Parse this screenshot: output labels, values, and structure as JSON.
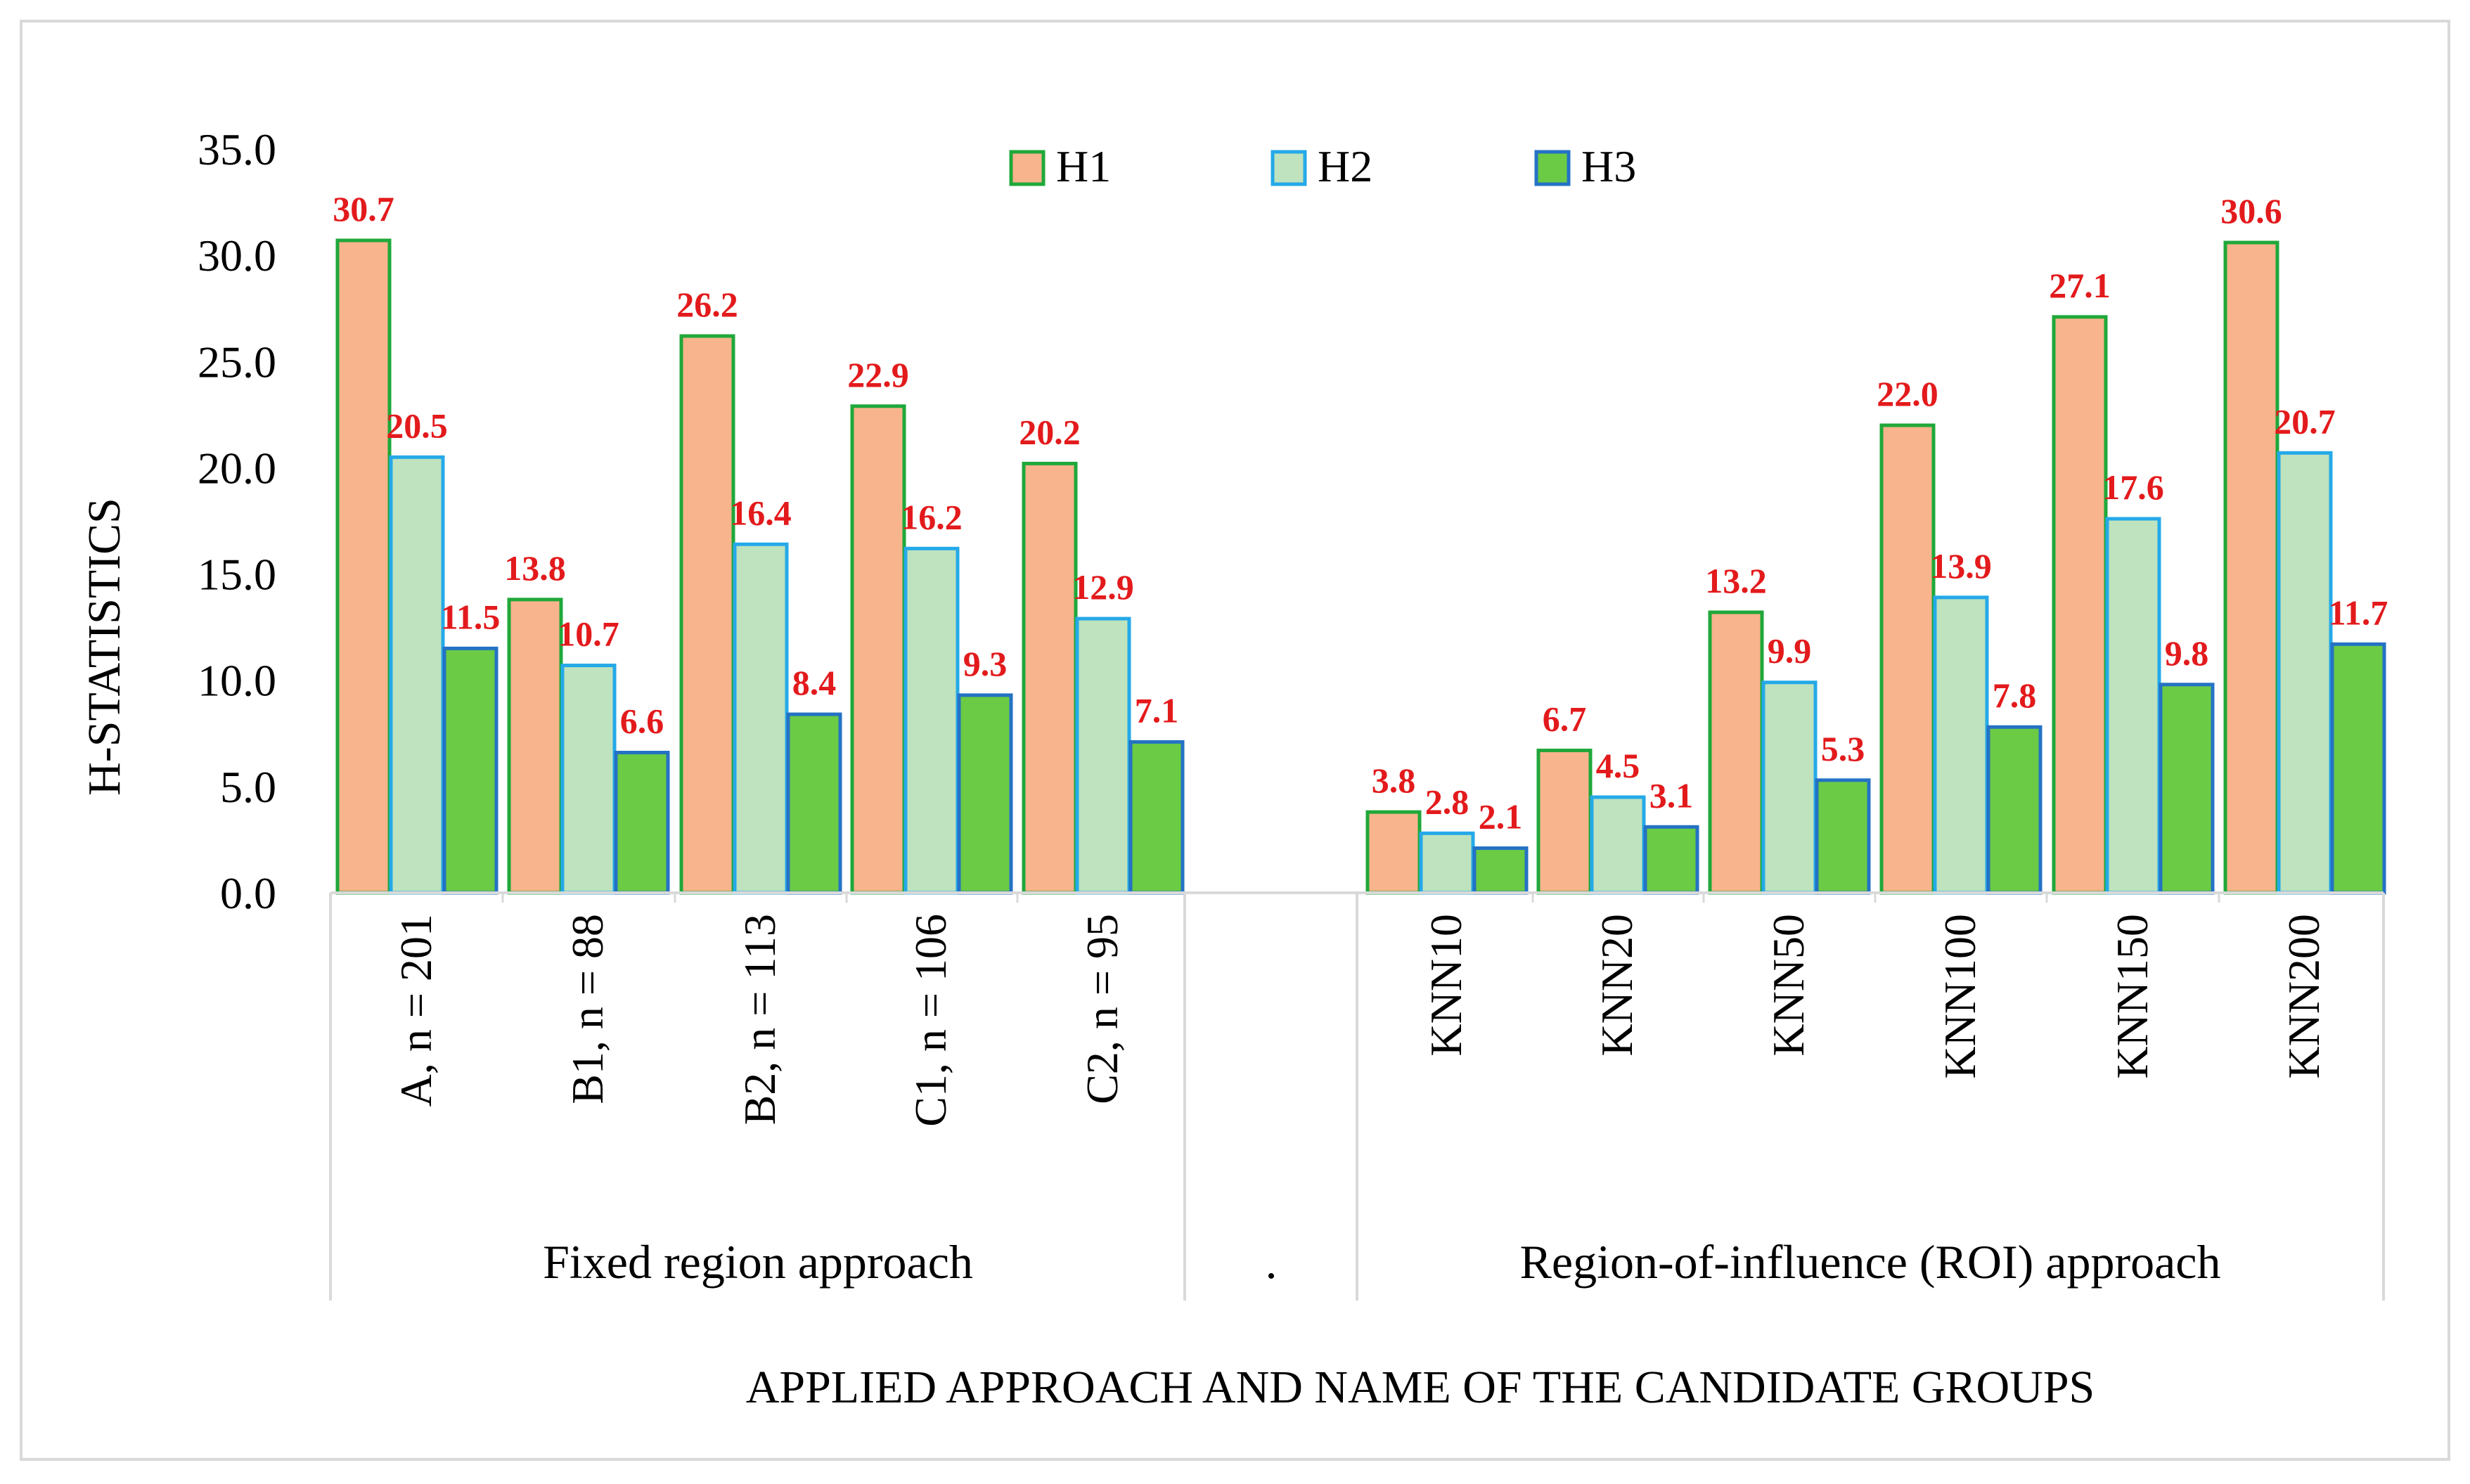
{
  "chart_data": {
    "type": "bar",
    "title": "",
    "ylabel": "H-STATISTICS",
    "xlabel": "APPLIED APPROACH AND NAME OF THE CANDIDATE GROUPS",
    "ylim": [
      0,
      35
    ],
    "yticks": [
      "0.0",
      "5.0",
      "10.0",
      "15.0",
      "20.0",
      "25.0",
      "30.0",
      "35.0"
    ],
    "groups": [
      {
        "label": "Fixed region approach",
        "categories": [
          "A, n = 201",
          "B1, n = 88",
          "B2, n = 113",
          "C1, n = 106",
          "C2, n = 95"
        ]
      },
      {
        "label": ".",
        "categories": [
          ""
        ]
      },
      {
        "label": "Region-of-influence (ROI) approach",
        "categories": [
          "KNN10",
          "KNN20",
          "KNN50",
          "KNN100",
          "KNN150",
          "KNN200"
        ]
      }
    ],
    "categories": [
      "A, n = 201",
      "B1, n = 88",
      "B2, n = 113",
      "C1, n = 106",
      "C2, n = 95",
      "",
      "KNN10",
      "KNN20",
      "KNN50",
      "KNN100",
      "KNN150",
      "KNN200"
    ],
    "series": [
      {
        "name": "H1",
        "fill": "#F8B48C",
        "stroke": "#1FA83A",
        "values": [
          30.7,
          13.8,
          26.2,
          22.9,
          20.2,
          null,
          3.8,
          6.7,
          13.2,
          22.0,
          27.1,
          30.6
        ],
        "labels": [
          "30.7",
          "13.8",
          "26.2",
          "22.9",
          "20.2",
          "",
          "3.8",
          "6.7",
          "13.2",
          "22.0",
          "27.1",
          "30.6"
        ]
      },
      {
        "name": "H2",
        "fill": "#BFE3BE",
        "stroke": "#25A9E8",
        "values": [
          20.5,
          10.7,
          16.4,
          16.2,
          12.9,
          null,
          2.8,
          4.5,
          9.9,
          13.9,
          17.6,
          20.7
        ],
        "labels": [
          "20.5",
          "10.7",
          "16.4",
          "16.2",
          "12.9",
          "",
          "2.8",
          "4.5",
          "9.9",
          "13.9",
          "17.6",
          "20.7"
        ]
      },
      {
        "name": "H3",
        "fill": "#6BCB45",
        "stroke": "#2472C4",
        "values": [
          11.5,
          6.6,
          8.4,
          9.3,
          7.1,
          null,
          2.1,
          3.1,
          5.3,
          7.8,
          9.8,
          11.7
        ],
        "labels": [
          "11.5",
          "6.6",
          "8.4",
          "9.3",
          "7.1",
          "",
          "2.1",
          "3.1",
          "5.3",
          "7.8",
          "9.8",
          "11.7"
        ]
      }
    ],
    "data_label_color": "#E31A1C",
    "legend_position": "top-center",
    "grid": false
  }
}
